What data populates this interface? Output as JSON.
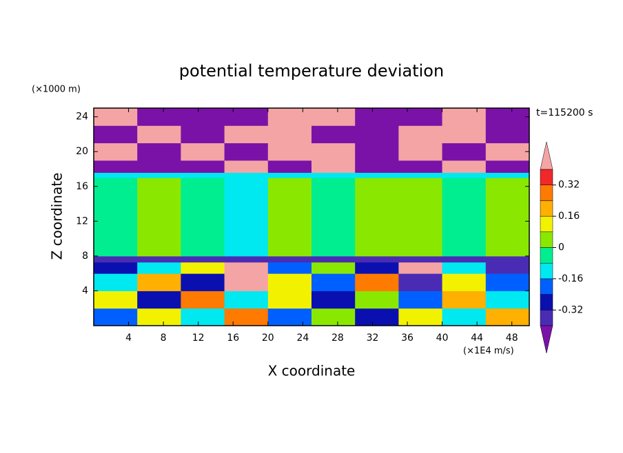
{
  "chart_data": {
    "type": "contour",
    "title": "potential temperature deviation",
    "subtitle": "t=115200 s",
    "x_label": "X coordinate",
    "x_unit": "(×1E4 m/s)",
    "y_label": "Z coordinate",
    "y_unit": "(×1000 m)",
    "xlim": [
      0,
      50
    ],
    "ylim": [
      0,
      25
    ],
    "xticks": [
      4,
      8,
      12,
      16,
      20,
      24,
      28,
      32,
      36,
      40,
      44,
      48
    ],
    "yticks": [
      4,
      8,
      12,
      16,
      20,
      24
    ],
    "x_edges": [
      0,
      5,
      10,
      15,
      20,
      25,
      30,
      35,
      40,
      45,
      50
    ],
    "z_edges": [
      0,
      2,
      4,
      6,
      7.3,
      8,
      17,
      17.6,
      19,
      21,
      23,
      25
    ],
    "values": [
      [
        -0.2,
        0.1,
        -0.1,
        0.25,
        -0.2,
        0.05,
        -0.3,
        0.1,
        -0.15,
        0.2
      ],
      [
        0.1,
        -0.25,
        0.3,
        -0.1,
        0.15,
        -0.3,
        0.05,
        -0.2,
        0.2,
        -0.1
      ],
      [
        -0.1,
        0.2,
        -0.3,
        0.45,
        0.1,
        -0.2,
        0.25,
        -0.35,
        0.1,
        -0.2
      ],
      [
        -0.3,
        -0.1,
        0.1,
        0.45,
        -0.2,
        0.05,
        -0.3,
        0.45,
        -0.15,
        -0.35
      ],
      [
        -0.36,
        -0.36,
        -0.36,
        -0.36,
        -0.36,
        -0.36,
        -0.36,
        -0.36,
        -0.36,
        -0.36
      ],
      [
        -0.04,
        0.04,
        -0.04,
        -0.12,
        0.04,
        -0.04,
        0.04,
        0.04,
        -0.04,
        0.04
      ],
      [
        -0.12,
        -0.12,
        -0.12,
        -0.12,
        -0.12,
        -0.12,
        -0.12,
        -0.12,
        -0.12,
        -0.12
      ],
      [
        -0.45,
        -0.45,
        -0.45,
        0.45,
        -0.45,
        0.45,
        -0.45,
        -0.45,
        0.45,
        -0.45
      ],
      [
        0.45,
        -0.45,
        0.45,
        -0.45,
        0.45,
        0.45,
        -0.45,
        0.45,
        -0.45,
        0.45
      ],
      [
        -0.45,
        0.45,
        -0.45,
        0.45,
        0.45,
        -0.45,
        -0.45,
        0.45,
        0.45,
        -0.45
      ],
      [
        0.45,
        -0.45,
        -0.45,
        -0.45,
        0.45,
        0.45,
        -0.45,
        -0.45,
        0.45,
        -0.45
      ]
    ],
    "levels": [
      -0.4,
      -0.32,
      -0.24,
      -0.16,
      -0.08,
      0,
      0.08,
      0.16,
      0.24,
      0.32,
      0.4
    ],
    "colors": [
      "#7a12a8",
      "#4a2cb4",
      "#0a10b0",
      "#0060ff",
      "#00e8f0",
      "#00ee90",
      "#8ae800",
      "#f2f200",
      "#ffb000",
      "#ff7a00",
      "#f0282a",
      "#f4a4a4"
    ],
    "colorbar_ticks": [
      -0.32,
      -0.16,
      0,
      0.16,
      0.32
    ]
  }
}
